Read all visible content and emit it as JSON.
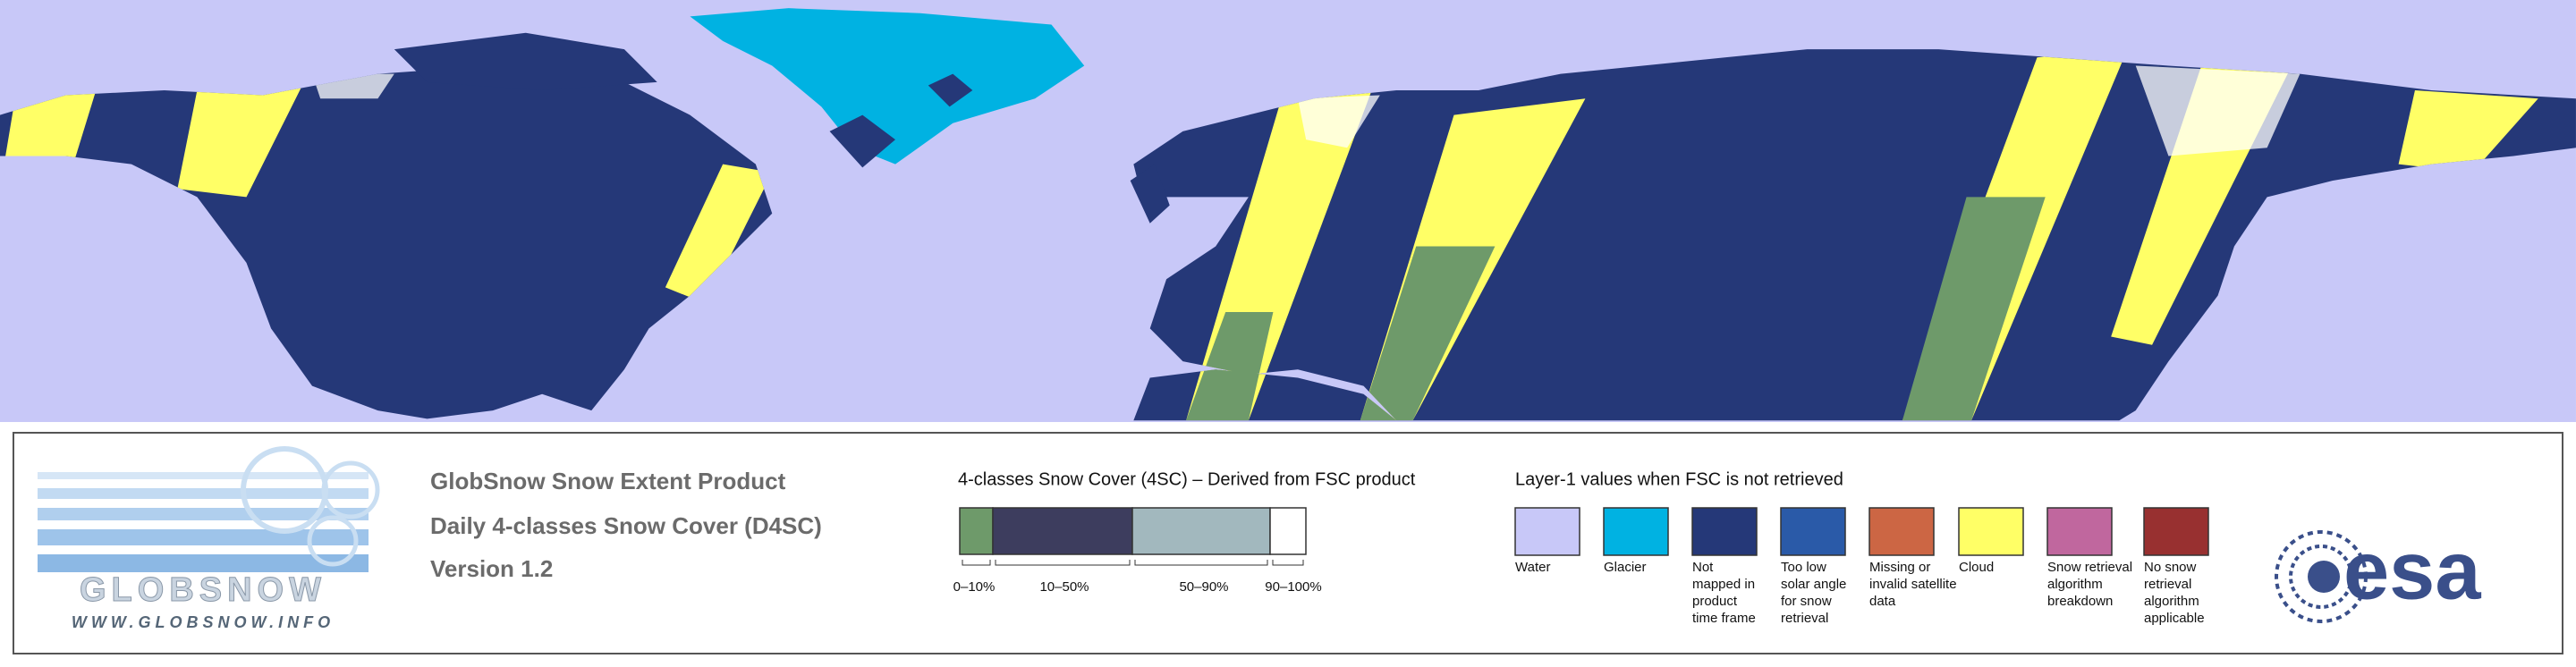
{
  "header": {
    "lines": [
      "GlobSnow Snow Extent Product",
      "Daily 4-classes Snow Cover (D4SC)",
      "Version 1.2"
    ]
  },
  "logo": {
    "name": "GLOBSNOW",
    "url": "WWW.GLOBSNOW.INFO"
  },
  "snow_cover": {
    "title": "4-classes Snow Cover (4SC) – Derived from FSC product",
    "classes": [
      {
        "label": "0–10%",
        "color": "#6e9a6a"
      },
      {
        "label": "10–50%",
        "color": "#3d3d5e"
      },
      {
        "label": "50–90%",
        "color": "#a2b8be"
      },
      {
        "label": "90–100%",
        "color": "#ffffff"
      }
    ]
  },
  "layer1": {
    "title": "Layer-1 values when FSC is not retrieved",
    "items": [
      {
        "lines": [
          "Water"
        ],
        "color": "#c8c8f8"
      },
      {
        "lines": [
          "Glacier"
        ],
        "color": "#00b2e2"
      },
      {
        "lines": [
          "Not",
          "mapped in",
          "product",
          "time frame"
        ],
        "color": "#253878"
      },
      {
        "lines": [
          "Too low",
          "solar angle",
          "for snow",
          "retrieval"
        ],
        "color": "#2a5aa8"
      },
      {
        "lines": [
          "Missing or",
          "invalid satellite",
          "data"
        ],
        "color": "#cc6644"
      },
      {
        "lines": [
          "Cloud"
        ],
        "color": "#ffff66"
      },
      {
        "lines": [
          "Snow retrieval",
          "algorithm",
          "breakdown"
        ],
        "color": "#c0679e"
      },
      {
        "lines": [
          "No snow",
          "retrieval",
          "algorithm",
          "applicable"
        ],
        "color": "#983030"
      }
    ]
  },
  "esa": {
    "name": "esa"
  }
}
